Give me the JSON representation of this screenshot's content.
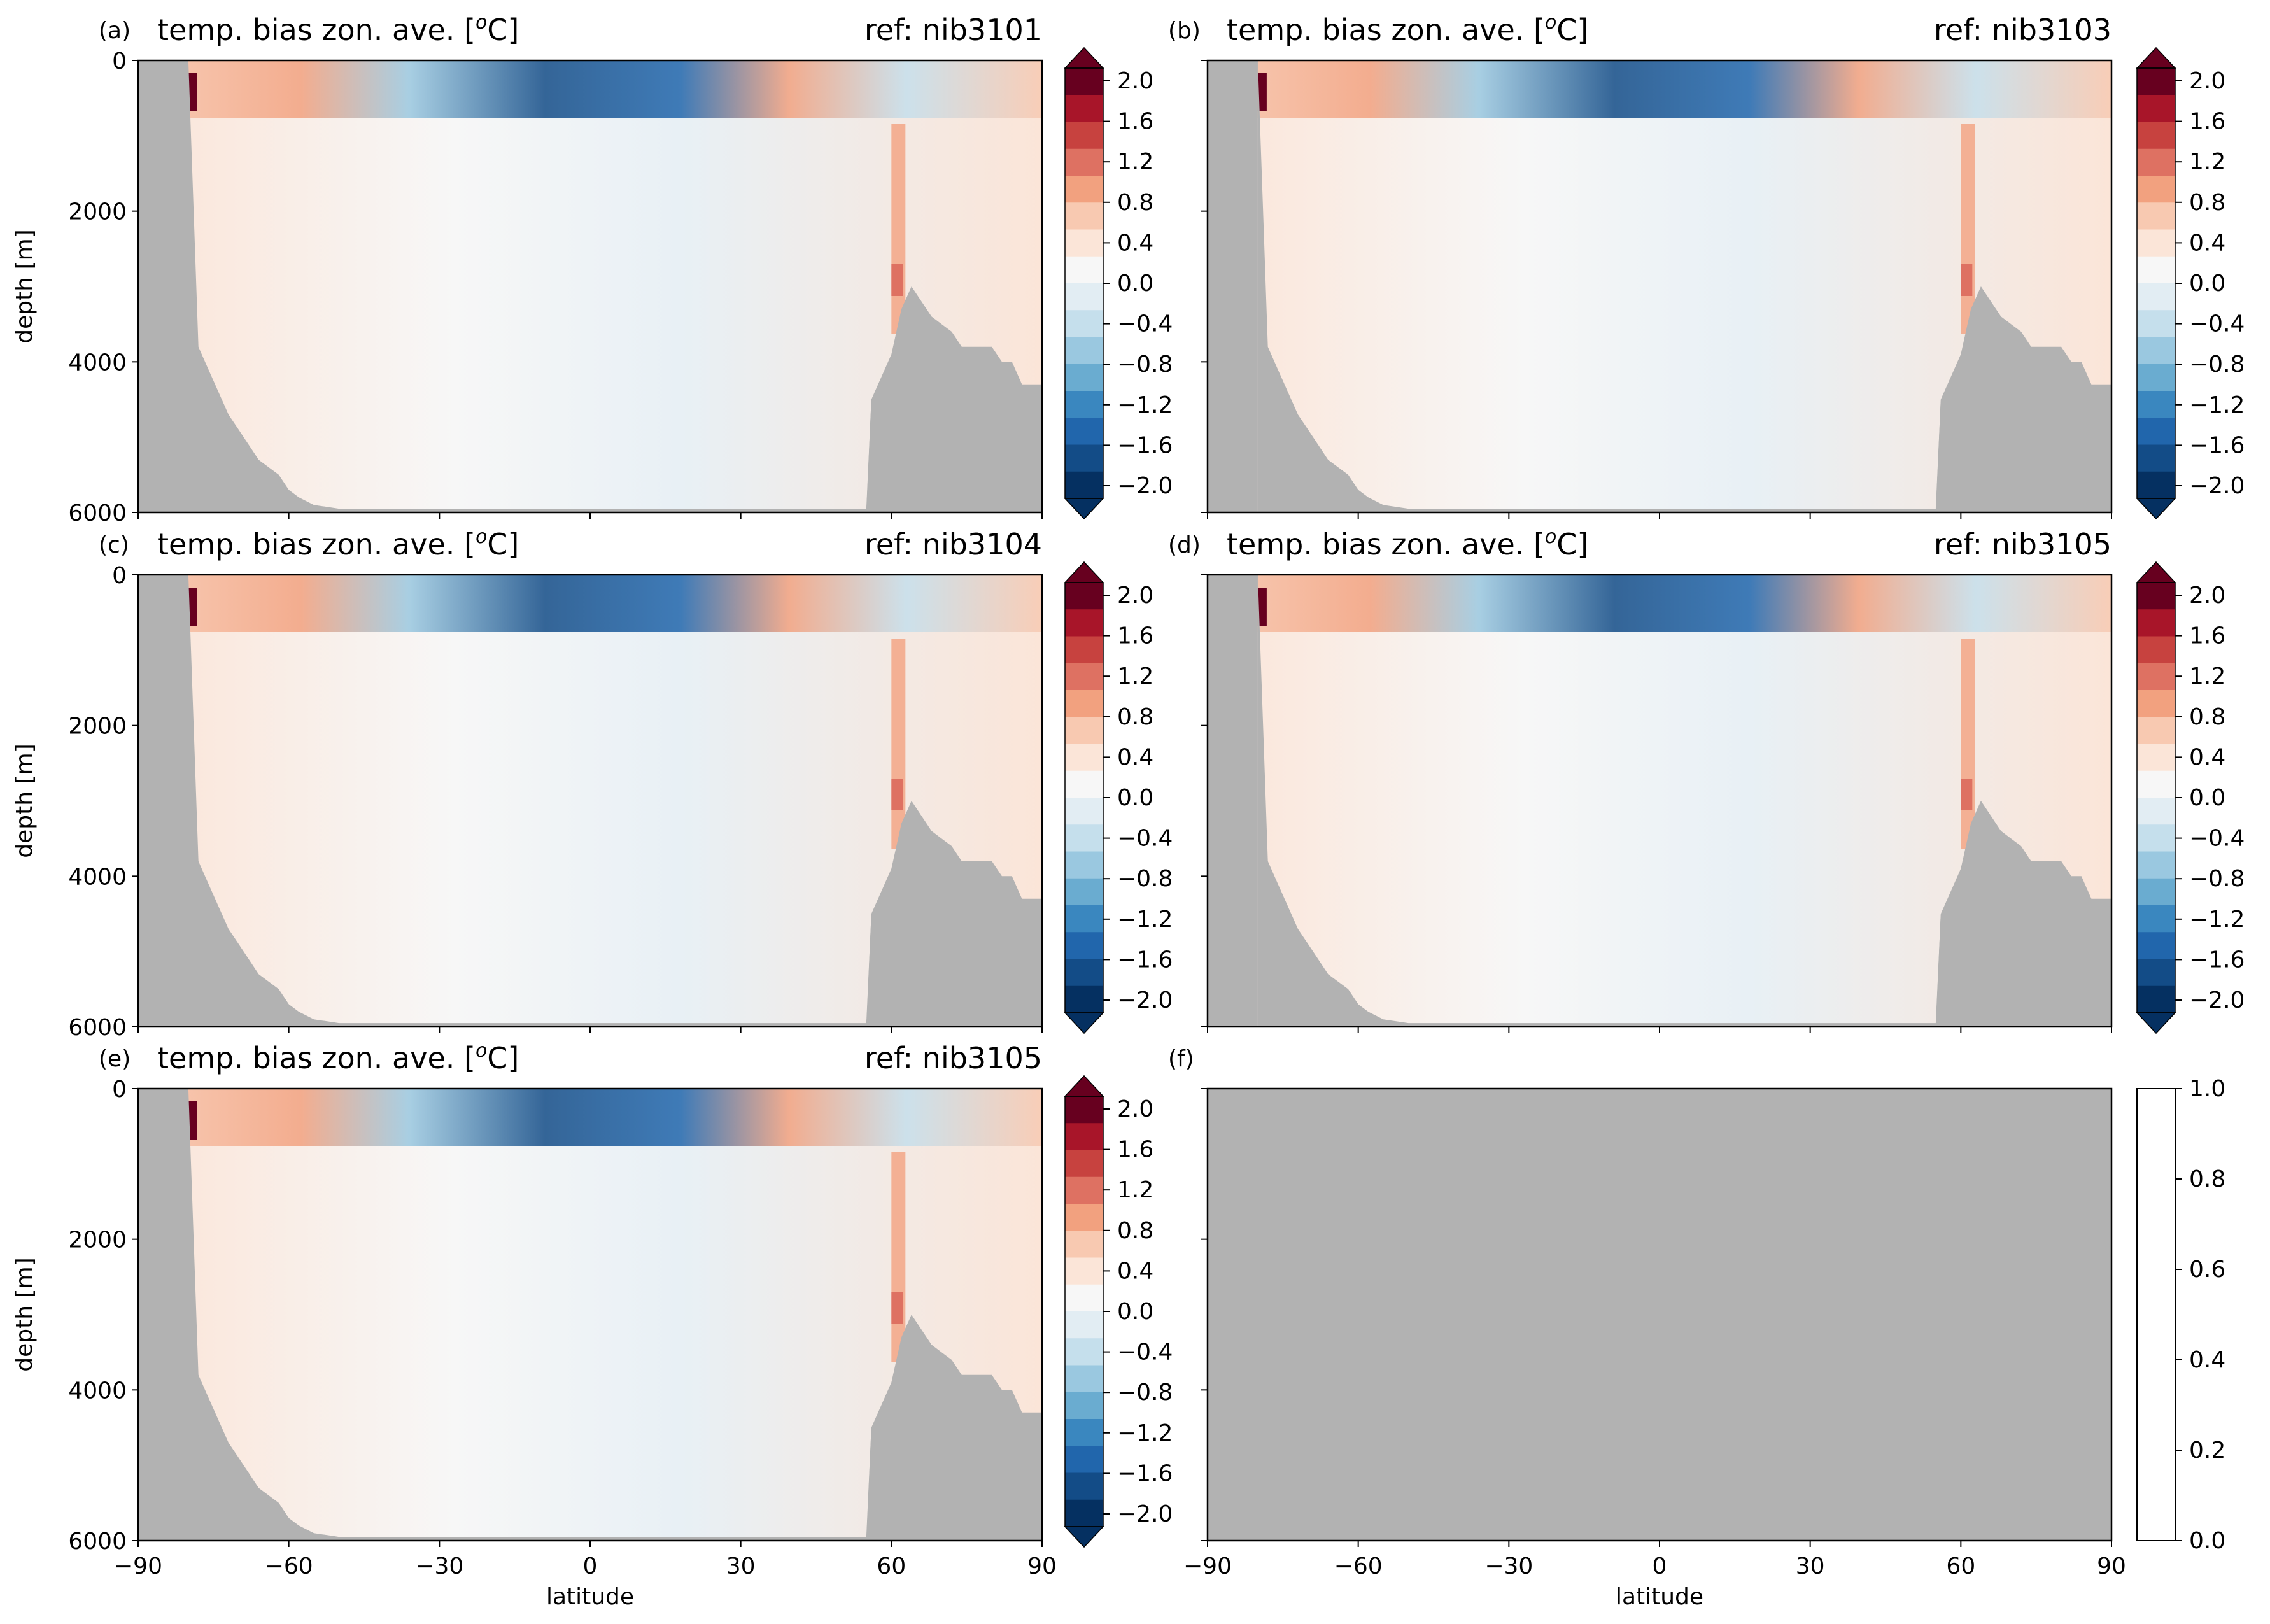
{
  "figure": {
    "background": "#ffffff",
    "land_color": "#b2b2b2",
    "xlabel": "latitude",
    "xticks": [
      -90,
      -60,
      -30,
      0,
      30,
      60,
      90
    ],
    "yticks": [
      0,
      2000,
      4000,
      6000
    ]
  },
  "colorbar": {
    "ticks": [
      "2.0",
      "1.6",
      "1.2",
      "0.8",
      "0.4",
      "0.0",
      "−0.4",
      "−0.8",
      "−1.2",
      "−1.6",
      "−2.0"
    ],
    "levels": [
      -2.0,
      2.0
    ],
    "colors": [
      "#053061",
      "#134c87",
      "#2166ac",
      "#3a87bf",
      "#6aacd0",
      "#9ac8e0",
      "#c5dfec",
      "#e2edf3",
      "#f7f7f7",
      "#fbe5d8",
      "#f8c9b1",
      "#f2a17f",
      "#de7162",
      "#c7423f",
      "#a81529",
      "#67001f"
    ],
    "colors_top": [
      "#67001f",
      "#a81529",
      "#c7423f",
      "#de7162",
      "#f2a17f",
      "#f8c9b1",
      "#fbe5d8",
      "#f7f7f7",
      "#e2edf3",
      "#c5dfec",
      "#9ac8e0",
      "#6aacd0",
      "#3a87bf",
      "#2166ac",
      "#134c87",
      "#053061"
    ],
    "empty_ticks": [
      "1.0",
      "0.8",
      "0.6",
      "0.4",
      "0.2",
      "0.0"
    ]
  },
  "panels": [
    {
      "label": "(a)",
      "title": "temp. bias zon. ave. [°C]",
      "title_main": "temp. bias zon. ave. [",
      "title_sup": "o",
      "title_end": "C]",
      "ref": "ref: nib3101",
      "ylabel": "depth [m]",
      "show_ylabels": true,
      "show_xlabels": false,
      "empty": false
    },
    {
      "label": "(b)",
      "title_main": "temp. bias zon. ave. [",
      "title_sup": "o",
      "title_end": "C]",
      "ref": "ref: nib3103",
      "ylabel": "",
      "show_ylabels": false,
      "show_xlabels": false,
      "empty": false
    },
    {
      "label": "(c)",
      "title_main": "temp. bias zon. ave. [",
      "title_sup": "o",
      "title_end": "C]",
      "ref": "ref: nib3104",
      "ylabel": "depth [m]",
      "show_ylabels": true,
      "show_xlabels": false,
      "empty": false
    },
    {
      "label": "(d)",
      "title_main": "temp. bias zon. ave. [",
      "title_sup": "o",
      "title_end": "C]",
      "ref": "ref: nib3105",
      "ylabel": "",
      "show_ylabels": false,
      "show_xlabels": false,
      "empty": false
    },
    {
      "label": "(e)",
      "title_main": "temp. bias zon. ave. [",
      "title_sup": "o",
      "title_end": "C]",
      "ref": "ref: nib3105",
      "ylabel": "depth [m]",
      "show_ylabels": true,
      "show_xlabels": true,
      "empty": false
    },
    {
      "label": "(f)",
      "title_main": "",
      "title_sup": "",
      "title_end": "",
      "ref": "",
      "ylabel": "",
      "show_ylabels": false,
      "show_xlabels": true,
      "empty": true
    }
  ],
  "chart_data": {
    "type": "heatmap",
    "description_units": "x: latitude in degrees, y: depth in m, color: temperature bias in degrees C",
    "xlim": [
      -90,
      90
    ],
    "ylim": [
      6000,
      0
    ],
    "clim": [
      -2.0,
      2.0
    ],
    "land_profile_lat": [
      -90,
      -80,
      -78,
      -76,
      -74,
      -72,
      -70,
      -68,
      -66,
      -64,
      -62,
      -60,
      -58,
      -55,
      -50,
      -45,
      -40,
      -30,
      -20,
      -10,
      0,
      10,
      20,
      30,
      40,
      50,
      55,
      56,
      58,
      60,
      62,
      64,
      66,
      68,
      70,
      72,
      74,
      76,
      78,
      80,
      82,
      84,
      86,
      88,
      90
    ],
    "land_profile_depth": [
      0,
      0,
      3800,
      4100,
      4400,
      4700,
      4900,
      5100,
      5300,
      5400,
      5500,
      5700,
      5800,
      5900,
      5950,
      5950,
      5950,
      5950,
      5950,
      5950,
      5950,
      5950,
      5950,
      5950,
      5950,
      5950,
      5950,
      4500,
      4200,
      3900,
      3300,
      3000,
      3200,
      3400,
      3500,
      3600,
      3800,
      3800,
      3800,
      3800,
      4000,
      4000,
      4300,
      4300,
      4300
    ]
  }
}
